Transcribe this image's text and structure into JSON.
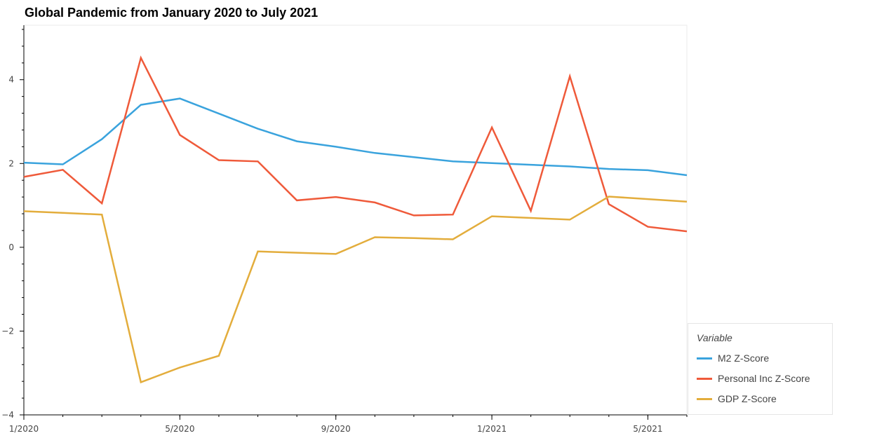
{
  "chart_data": {
    "type": "line",
    "title": "Global Pandemic from January 2020 to July 2021",
    "xlabel": "",
    "ylabel": "",
    "x": [
      "2020-01",
      "2020-02",
      "2020-03",
      "2020-04",
      "2020-05",
      "2020-06",
      "2020-07",
      "2020-08",
      "2020-09",
      "2020-10",
      "2020-11",
      "2020-12",
      "2021-01",
      "2021-02",
      "2021-03",
      "2021-04",
      "2021-05",
      "2021-06"
    ],
    "x_range": [
      "2020-01",
      "2021-06"
    ],
    "x_ticks": [
      {
        "date": "2020-01",
        "label": "1/2020"
      },
      {
        "date": "2020-05",
        "label": "5/2020"
      },
      {
        "date": "2020-09",
        "label": "9/2020"
      },
      {
        "date": "2021-01",
        "label": "1/2021"
      },
      {
        "date": "2021-05",
        "label": "5/2021"
      }
    ],
    "ylim": [
      -4,
      5.3
    ],
    "y_ticks": [
      4,
      2,
      0,
      -2,
      -4
    ],
    "y_tick_labels": [
      "4",
      "2",
      "0",
      "−2",
      "−4"
    ],
    "series": [
      {
        "name": "M2 Z-Score",
        "color": "#3aa3dd",
        "values": [
          2.02,
          1.98,
          2.58,
          3.4,
          3.55,
          3.19,
          2.83,
          2.53,
          2.4,
          2.25,
          2.15,
          2.05,
          2.01,
          1.97,
          1.93,
          1.87,
          1.84,
          1.72
        ]
      },
      {
        "name": "Personal Inc Z-Score",
        "color": "#ef5a3a",
        "values": [
          1.68,
          1.85,
          1.05,
          4.52,
          2.68,
          2.08,
          2.05,
          1.12,
          1.2,
          1.07,
          0.76,
          0.78,
          2.86,
          0.87,
          4.08,
          1.03,
          0.49,
          0.38
        ]
      },
      {
        "name": "GDP Z-Score",
        "color": "#e3ad3c",
        "values": [
          0.86,
          0.82,
          0.78,
          -3.22,
          -2.87,
          -2.59,
          -0.1,
          -0.13,
          -0.16,
          0.24,
          0.22,
          0.19,
          0.74,
          0.7,
          0.66,
          1.21,
          1.15,
          1.09
        ]
      }
    ],
    "legend": {
      "title": "Variable",
      "position": "bottom-right"
    },
    "grid": false
  }
}
